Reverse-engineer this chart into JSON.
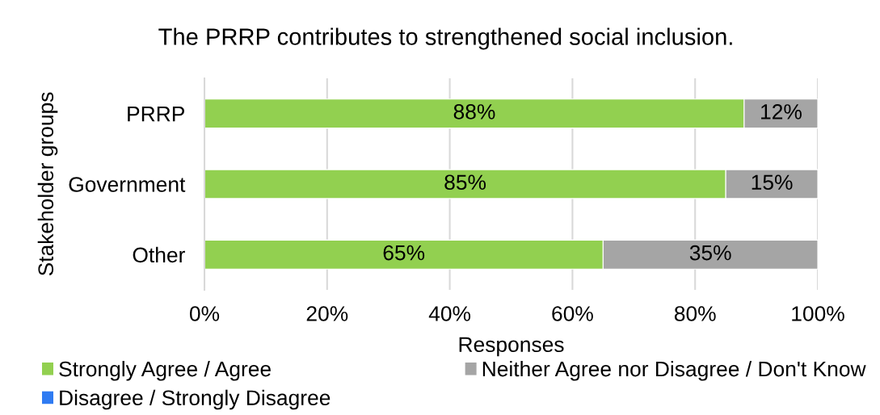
{
  "chart_data": {
    "type": "bar",
    "orientation": "horizontal",
    "stacked": true,
    "title": "The PRRP contributes to strengthened social inclusion.",
    "xlabel": "Responses",
    "ylabel": "Stakeholder groups",
    "categories": [
      "PRRP",
      "Government",
      "Other"
    ],
    "series": [
      {
        "name": "Strongly Agree / Agree",
        "color": "#92d050",
        "values": [
          88,
          85,
          65
        ],
        "value_labels": [
          "88%",
          "85%",
          "65%"
        ]
      },
      {
        "name": "Neither Agree nor Disagree / Don't Know",
        "color": "#a5a5a5",
        "values": [
          12,
          15,
          35
        ],
        "value_labels": [
          "12%",
          "15%",
          "35%"
        ]
      },
      {
        "name": "Disagree / Strongly Disagree",
        "color": "#2f7bf2",
        "values": [
          null,
          null,
          null
        ],
        "value_labels": [
          null,
          null,
          null
        ]
      }
    ],
    "xlim": [
      0,
      100
    ],
    "xticks": [
      {
        "value": 0,
        "label": "0%"
      },
      {
        "value": 20,
        "label": "20%"
      },
      {
        "value": 40,
        "label": "40%"
      },
      {
        "value": 60,
        "label": "60%"
      },
      {
        "value": 80,
        "label": "80%"
      },
      {
        "value": 100,
        "label": "100%"
      }
    ],
    "grid": "x",
    "legend": "bottom"
  }
}
